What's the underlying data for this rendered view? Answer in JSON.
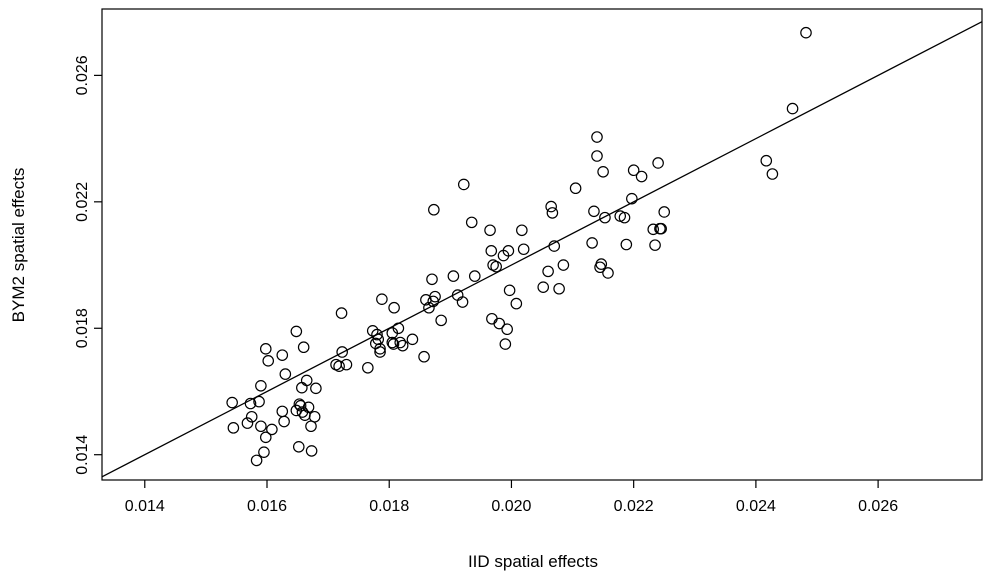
{
  "chart_data": {
    "type": "scatter",
    "title": "",
    "xlabel": "IID spatial effects",
    "ylabel": "BYM2 spatial effects",
    "xlim": [
      0.0133,
      0.0277
    ],
    "ylim": [
      0.0132,
      0.0281
    ],
    "x_ticks": [
      "0.014",
      "0.016",
      "0.018",
      "0.020",
      "0.022",
      "0.024",
      "0.026"
    ],
    "y_ticks": [
      "0.014",
      "0.018",
      "0.022",
      "0.026"
    ],
    "grid": false,
    "legend": "none",
    "reference_line": {
      "type": "identity",
      "slope": 1,
      "intercept": 0
    },
    "colors": {
      "points": "#000000",
      "line": "#000000"
    },
    "points": [
      [
        0.01543,
        0.01565
      ],
      [
        0.01545,
        0.01485
      ],
      [
        0.01568,
        0.015
      ],
      [
        0.01573,
        0.01562
      ],
      [
        0.01575,
        0.0152
      ],
      [
        0.01583,
        0.01382
      ],
      [
        0.01587,
        0.01568
      ],
      [
        0.0159,
        0.0149
      ],
      [
        0.0159,
        0.01618
      ],
      [
        0.01595,
        0.01408
      ],
      [
        0.01598,
        0.01455
      ],
      [
        0.01598,
        0.01735
      ],
      [
        0.01602,
        0.01697
      ],
      [
        0.01608,
        0.0148
      ],
      [
        0.01625,
        0.01537
      ],
      [
        0.01625,
        0.01715
      ],
      [
        0.01628,
        0.01505
      ],
      [
        0.0163,
        0.01655
      ],
      [
        0.01648,
        0.0179
      ],
      [
        0.01648,
        0.0154
      ],
      [
        0.01652,
        0.01425
      ],
      [
        0.01653,
        0.0156
      ],
      [
        0.01655,
        0.01555
      ],
      [
        0.01657,
        0.01612
      ],
      [
        0.01658,
        0.01535
      ],
      [
        0.0166,
        0.0174
      ],
      [
        0.01662,
        0.01525
      ],
      [
        0.01665,
        0.01635
      ],
      [
        0.01668,
        0.0155
      ],
      [
        0.01672,
        0.0149
      ],
      [
        0.01673,
        0.01412
      ],
      [
        0.01678,
        0.0152
      ],
      [
        0.0168,
        0.0161
      ],
      [
        0.01713,
        0.01685
      ],
      [
        0.01718,
        0.0168
      ],
      [
        0.01722,
        0.01848
      ],
      [
        0.01723,
        0.01725
      ],
      [
        0.0173,
        0.01685
      ],
      [
        0.01765,
        0.01675
      ],
      [
        0.01773,
        0.01792
      ],
      [
        0.01778,
        0.01752
      ],
      [
        0.0178,
        0.0178
      ],
      [
        0.01782,
        0.01765
      ],
      [
        0.01785,
        0.01725
      ],
      [
        0.01785,
        0.01735
      ],
      [
        0.01788,
        0.01892
      ],
      [
        0.01805,
        0.01785
      ],
      [
        0.01805,
        0.01755
      ],
      [
        0.01807,
        0.0175
      ],
      [
        0.01808,
        0.01865
      ],
      [
        0.01815,
        0.018
      ],
      [
        0.01818,
        0.01755
      ],
      [
        0.01822,
        0.01745
      ],
      [
        0.01838,
        0.01765
      ],
      [
        0.01857,
        0.0171
      ],
      [
        0.0186,
        0.0189
      ],
      [
        0.01865,
        0.01865
      ],
      [
        0.0187,
        0.01955
      ],
      [
        0.01872,
        0.01885
      ],
      [
        0.01873,
        0.02175
      ],
      [
        0.01875,
        0.019
      ],
      [
        0.01885,
        0.01825
      ],
      [
        0.01905,
        0.01965
      ],
      [
        0.01912,
        0.01905
      ],
      [
        0.0192,
        0.01883
      ],
      [
        0.01922,
        0.02255
      ],
      [
        0.01935,
        0.02135
      ],
      [
        0.0194,
        0.01965
      ],
      [
        0.01965,
        0.0211
      ],
      [
        0.01967,
        0.02045
      ],
      [
        0.01968,
        0.0183
      ],
      [
        0.0197,
        0.02
      ],
      [
        0.01975,
        0.01995
      ],
      [
        0.0198,
        0.01815
      ],
      [
        0.01987,
        0.0203
      ],
      [
        0.0199,
        0.0175
      ],
      [
        0.01993,
        0.01797
      ],
      [
        0.01995,
        0.02045
      ],
      [
        0.01997,
        0.0192
      ],
      [
        0.02008,
        0.01878
      ],
      [
        0.02017,
        0.0211
      ],
      [
        0.0202,
        0.0205
      ],
      [
        0.02052,
        0.0193
      ],
      [
        0.0206,
        0.0198
      ],
      [
        0.02065,
        0.02185
      ],
      [
        0.02067,
        0.02165
      ],
      [
        0.0207,
        0.0206
      ],
      [
        0.02078,
        0.01925
      ],
      [
        0.02085,
        0.02
      ],
      [
        0.02105,
        0.02243
      ],
      [
        0.02132,
        0.0207
      ],
      [
        0.02135,
        0.0217
      ],
      [
        0.0214,
        0.02405
      ],
      [
        0.0214,
        0.02345
      ],
      [
        0.02145,
        0.01993
      ],
      [
        0.02147,
        0.02003
      ],
      [
        0.0215,
        0.02295
      ],
      [
        0.02153,
        0.0215
      ],
      [
        0.02158,
        0.01975
      ],
      [
        0.02178,
        0.02155
      ],
      [
        0.02185,
        0.0215
      ],
      [
        0.02188,
        0.02065
      ],
      [
        0.02197,
        0.0221
      ],
      [
        0.022,
        0.023
      ],
      [
        0.02213,
        0.0228
      ],
      [
        0.02232,
        0.02113
      ],
      [
        0.02235,
        0.02063
      ],
      [
        0.0224,
        0.02323
      ],
      [
        0.02243,
        0.02115
      ],
      [
        0.02245,
        0.02115
      ],
      [
        0.0225,
        0.02168
      ],
      [
        0.02417,
        0.0233
      ],
      [
        0.02427,
        0.02288
      ],
      [
        0.0246,
        0.02495
      ],
      [
        0.02482,
        0.02735
      ]
    ]
  }
}
